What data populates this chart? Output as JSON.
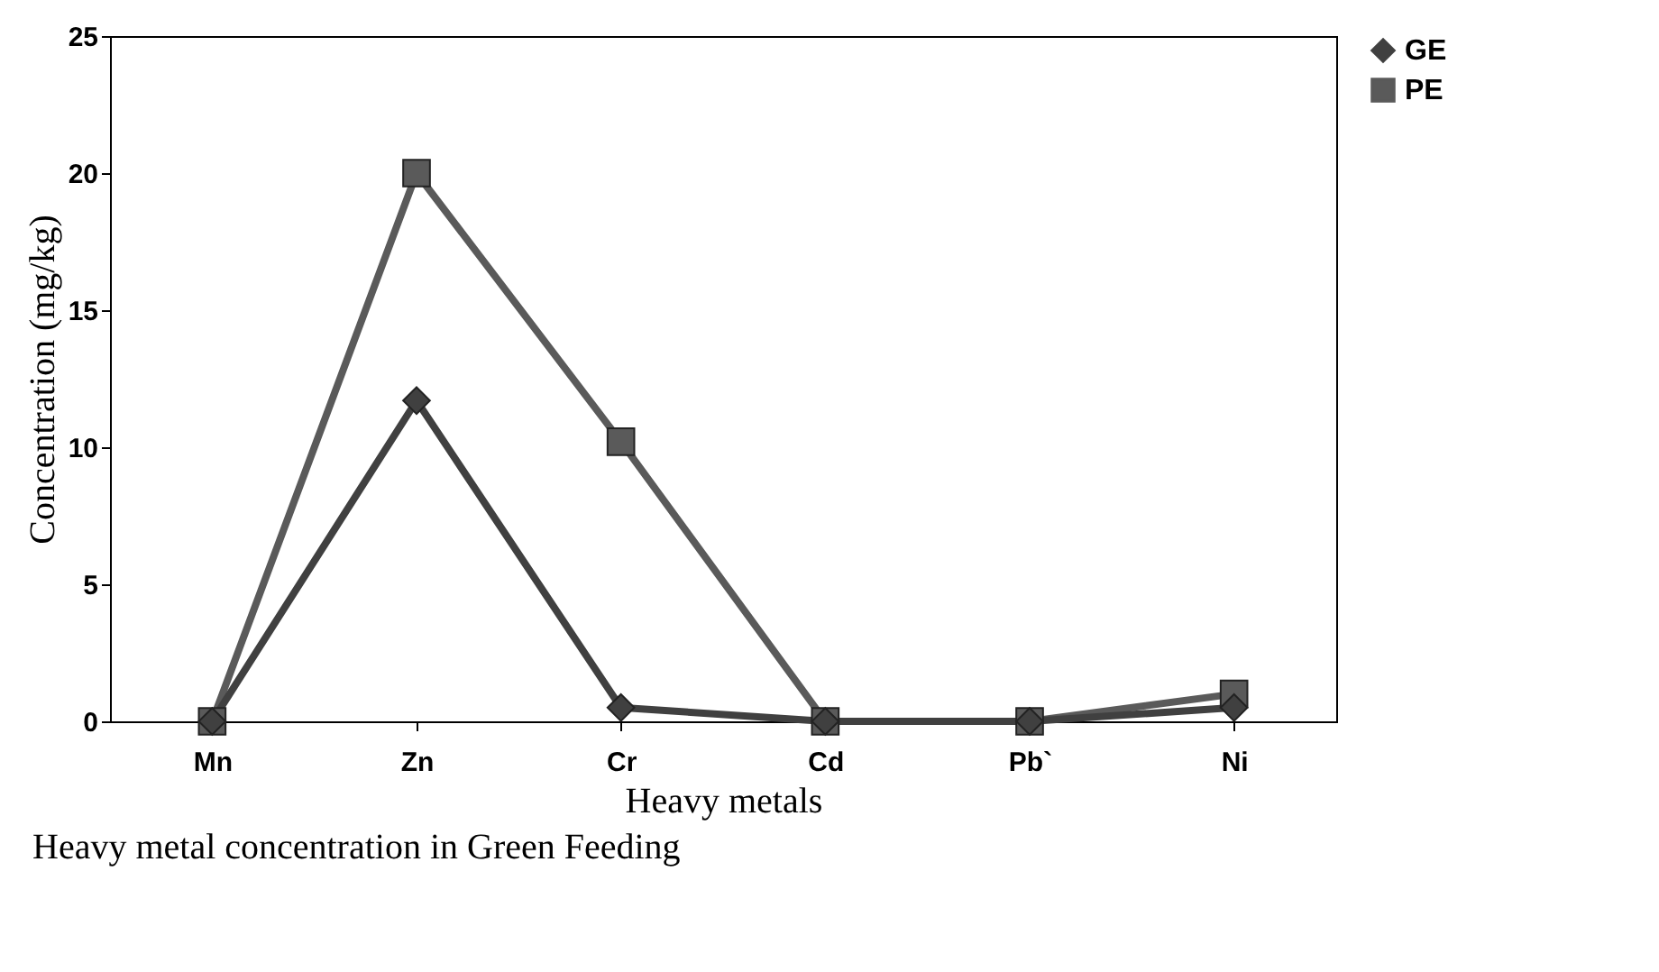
{
  "chart_data": {
    "type": "line",
    "xlabel": "Heavy metals",
    "ylabel": "Concentration (mg/kg)",
    "categories": [
      "Mn",
      "Zn",
      "Cr",
      "Cd",
      "Pb`",
      "Ni"
    ],
    "series": [
      {
        "name": "GE",
        "color": "#404040",
        "marker": "diamond",
        "values": [
          0,
          11.7,
          0.5,
          0,
          0,
          0.5
        ]
      },
      {
        "name": "PE",
        "color": "#5a5a5a",
        "marker": "square",
        "values": [
          0,
          20,
          10.2,
          0,
          0,
          1
        ]
      }
    ],
    "ylim": [
      0,
      25
    ],
    "yticks": [
      0,
      5,
      10,
      15,
      20,
      25
    ],
    "grid": false,
    "legend": "right",
    "annotations": [
      "Heavy metal concentration in Green Feeding"
    ]
  }
}
